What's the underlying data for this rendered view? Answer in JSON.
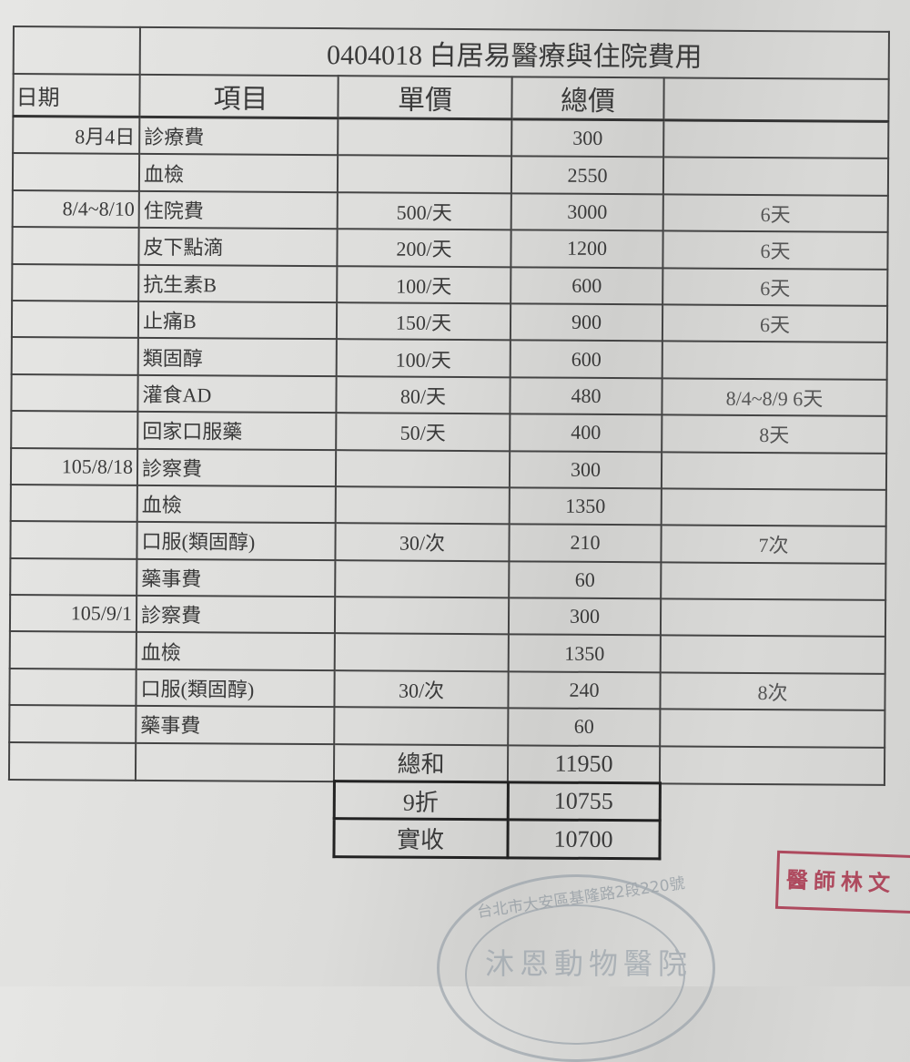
{
  "title": "0404018 白居易醫療與住院費用",
  "headers": [
    "日期",
    "項目",
    "單價",
    "總價",
    ""
  ],
  "rows": [
    {
      "date": "8月4日",
      "item": "診療費",
      "unit": "",
      "total": "300",
      "note": ""
    },
    {
      "date": "",
      "item": "血檢",
      "unit": "",
      "total": "2550",
      "note": ""
    },
    {
      "date": "8/4~8/10",
      "item": "住院費",
      "unit": "500/天",
      "total": "3000",
      "note": "6天"
    },
    {
      "date": "",
      "item": "皮下點滴",
      "unit": "200/天",
      "total": "1200",
      "note": "6天"
    },
    {
      "date": "",
      "item": "抗生素B",
      "unit": "100/天",
      "total": "600",
      "note": "6天"
    },
    {
      "date": "",
      "item": "止痛B",
      "unit": "150/天",
      "total": "900",
      "note": "6天"
    },
    {
      "date": "",
      "item": "類固醇",
      "unit": "100/天",
      "total": "600",
      "note": ""
    },
    {
      "date": "",
      "item": "灌食AD",
      "unit": "80/天",
      "total": "480",
      "note": "8/4~8/9 6天"
    },
    {
      "date": "",
      "item": "回家口服藥",
      "unit": "50/天",
      "total": "400",
      "note": "8天"
    },
    {
      "date": "105/8/18",
      "item": "診察費",
      "unit": "",
      "total": "300",
      "note": ""
    },
    {
      "date": "",
      "item": "血檢",
      "unit": "",
      "total": "1350",
      "note": ""
    },
    {
      "date": "",
      "item": "口服(類固醇)",
      "unit": "30/次",
      "total": "210",
      "note": "7次"
    },
    {
      "date": "",
      "item": "藥事費",
      "unit": "",
      "total": "60",
      "note": ""
    },
    {
      "date": "105/9/1",
      "item": "診察費",
      "unit": "",
      "total": "300",
      "note": ""
    },
    {
      "date": "",
      "item": "血檢",
      "unit": "",
      "total": "1350",
      "note": ""
    },
    {
      "date": "",
      "item": "口服(類固醇)",
      "unit": "30/次",
      "total": "240",
      "note": "8次"
    },
    {
      "date": "",
      "item": "藥事費",
      "unit": "",
      "total": "60",
      "note": ""
    }
  ],
  "summary": [
    {
      "label": "總和",
      "value": "11950"
    },
    {
      "label": "9折",
      "value": "10755"
    },
    {
      "label": "實收",
      "value": "10700"
    }
  ],
  "stamps": {
    "doctor": "醫師林文",
    "clinic_address": "台北市大安區基隆路2段220號",
    "clinic_name": "沐恩動物醫院",
    "doctor_color": "#a8324a",
    "clinic_color": "#9aa3ab"
  }
}
